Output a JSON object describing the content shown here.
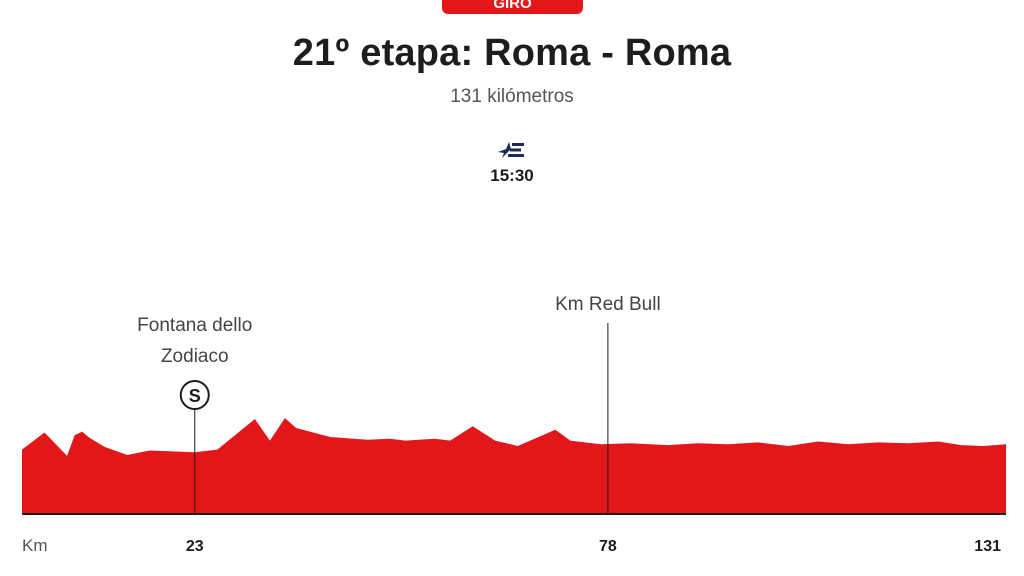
{
  "header": {
    "badge": "GIRO",
    "title": "21º etapa: Roma - Roma",
    "subtitle": "131 kilómetros",
    "broadcaster_icon": "eurosport-logo-icon",
    "start_time": "15:30"
  },
  "colors": {
    "profile": "#e3161a",
    "badge": "#e3161a",
    "text": "#1d1d1b"
  },
  "chart_data": {
    "type": "area",
    "title": "21º etapa: Roma - Roma",
    "xlabel": "Km",
    "xlim": [
      0,
      131
    ],
    "x_ticks": [
      23,
      78,
      131
    ],
    "profile": {
      "x": [
        0,
        3,
        6,
        7,
        8,
        9,
        11,
        14,
        17,
        20,
        23,
        26,
        31,
        33,
        35,
        36.5,
        41,
        46,
        49,
        51,
        55,
        57,
        60,
        63,
        66,
        71,
        73,
        77,
        81,
        86,
        90,
        94,
        98,
        102,
        106,
        110,
        114,
        118,
        122,
        125,
        128,
        131
      ],
      "y": [
        3.6,
        5.5,
        2.9,
        5.2,
        5.6,
        4.9,
        3.9,
        3.0,
        3.5,
        3.4,
        3.3,
        3.6,
        7.0,
        4.6,
        7.1,
        6.0,
        5.0,
        4.7,
        4.8,
        4.6,
        4.8,
        4.6,
        6.2,
        4.6,
        4.0,
        5.8,
        4.6,
        4.2,
        4.3,
        4.1,
        4.3,
        4.2,
        4.4,
        4.0,
        4.5,
        4.2,
        4.4,
        4.3,
        4.5,
        4.1,
        4.0,
        4.2
      ]
    },
    "annotations": [
      {
        "km": 23,
        "label": "Fontana dello Zodiaco",
        "label_lines": [
          "Fontana dello",
          "Zodiaco"
        ],
        "marker": "S",
        "marker_icon": "sprint-marker-icon"
      },
      {
        "km": 78,
        "label": "Km Red Bull",
        "label_lines": [
          "Km Red Bull"
        ]
      }
    ],
    "grid": false
  }
}
